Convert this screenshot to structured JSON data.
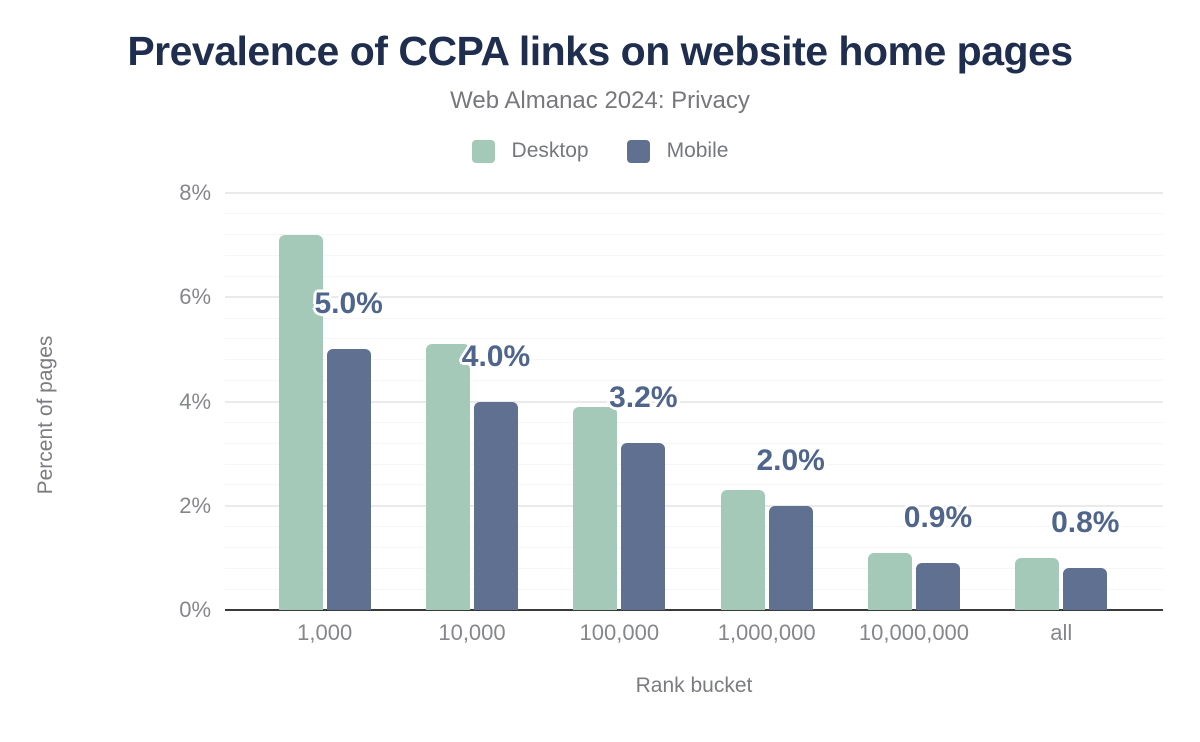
{
  "title": "Prevalence of CCPA links on website home pages",
  "subtitle": "Web Almanac 2024: Privacy",
  "chart_data": {
    "type": "bar",
    "title": "Prevalence of CCPA links on website home pages",
    "subtitle": "Web Almanac 2024: Privacy",
    "categories": [
      "1,000",
      "10,000",
      "100,000",
      "1,000,000",
      "10,000,000",
      "all"
    ],
    "series": [
      {
        "name": "Desktop",
        "color": "#a5c9b8",
        "values": [
          7.2,
          5.1,
          3.9,
          2.3,
          1.1,
          1.0
        ]
      },
      {
        "name": "Mobile",
        "color": "#5f7090",
        "values": [
          5.0,
          4.0,
          3.2,
          2.0,
          0.9,
          0.8
        ]
      }
    ],
    "value_labels": {
      "series": "Mobile",
      "labels": [
        "5.0%",
        "4.0%",
        "3.2%",
        "2.0%",
        "0.9%",
        "0.8%"
      ],
      "color": "#4f658b"
    },
    "xlabel": "Rank bucket",
    "ylabel": "Percent of pages",
    "y_ticks": [
      "0%",
      "2%",
      "4%",
      "6%",
      "8%"
    ],
    "ylim": [
      0,
      8
    ],
    "grid": {
      "major_step": 2,
      "minor_step": 0.4,
      "grid_on": true
    },
    "legend_position": "top"
  }
}
